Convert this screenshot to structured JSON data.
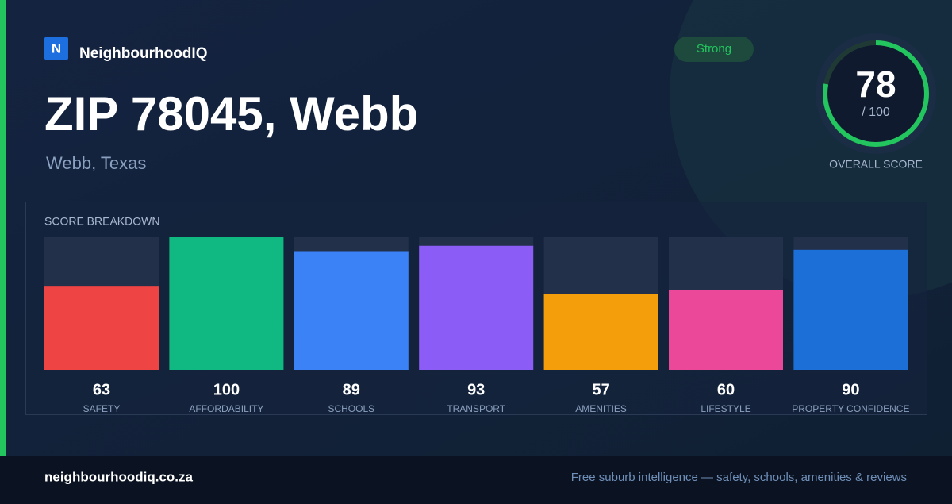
{
  "brand": {
    "logo": "N",
    "name": "NeighbourhoodIQ"
  },
  "header": {
    "title": "ZIP 78045, Webb",
    "subtitle": "Webb, Texas",
    "badge": "Strong"
  },
  "overall": {
    "score": 78,
    "max": {
      "value": 100,
      "label": "/ 100"
    },
    "label": "OVERALL SCORE",
    "color": "#22c55e"
  },
  "chart_data": {
    "type": "bar",
    "title": "SCORE BREAKDOWN",
    "categories": [
      "SAFETY",
      "AFFORDABILITY",
      "SCHOOLS",
      "TRANSPORT",
      "AMENITIES",
      "LIFESTYLE",
      "PROPERTY CONFIDENCE"
    ],
    "values": [
      63,
      100,
      89,
      93,
      57,
      60,
      90
    ],
    "colors": [
      "#ef4444",
      "#10b981",
      "#3b82f6",
      "#8b5cf6",
      "#f59e0b",
      "#ec4899",
      "#1d6fd8"
    ],
    "ylim": [
      0,
      100
    ]
  },
  "footer": {
    "site": "neighbourhoodiq.co.za",
    "tagline": "Free suburb intelligence — safety, schools, amenities & reviews"
  }
}
